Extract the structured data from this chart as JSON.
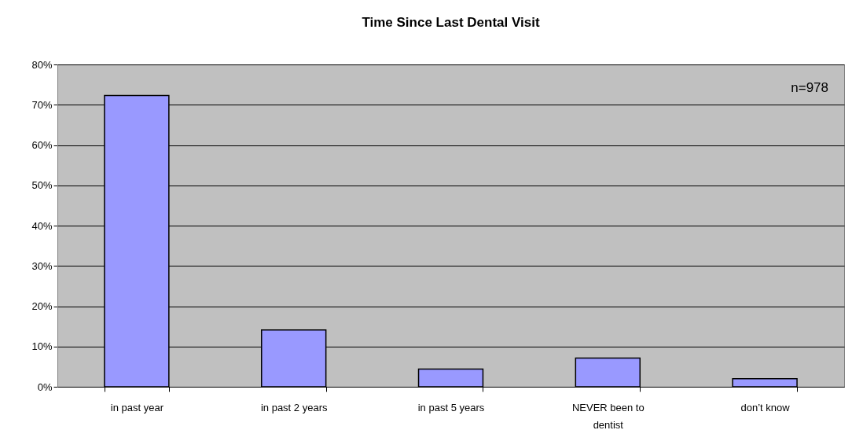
{
  "chart_data": {
    "type": "bar",
    "title": "Time Since Last Dental Visit",
    "categories": [
      "in past year",
      "in past 2 years",
      "in past 5 years",
      "NEVER been to dentist",
      "don’t know"
    ],
    "values": [
      72.3,
      14.1,
      4.4,
      7.1,
      2.0
    ],
    "color": "#9999ff",
    "ylim": [
      0,
      80
    ],
    "yticks": [
      {
        "value": 0,
        "label": "0%"
      },
      {
        "value": 10,
        "label": "10%"
      },
      {
        "value": 20,
        "label": "20%"
      },
      {
        "value": 30,
        "label": "30%"
      },
      {
        "value": 40,
        "label": "40%"
      },
      {
        "value": 50,
        "label": "50%"
      },
      {
        "value": 60,
        "label": "60%"
      },
      {
        "value": 70,
        "label": "70%"
      },
      {
        "value": 80,
        "label": "80%"
      }
    ],
    "grid": "y",
    "annotations": [
      "n=978"
    ]
  }
}
